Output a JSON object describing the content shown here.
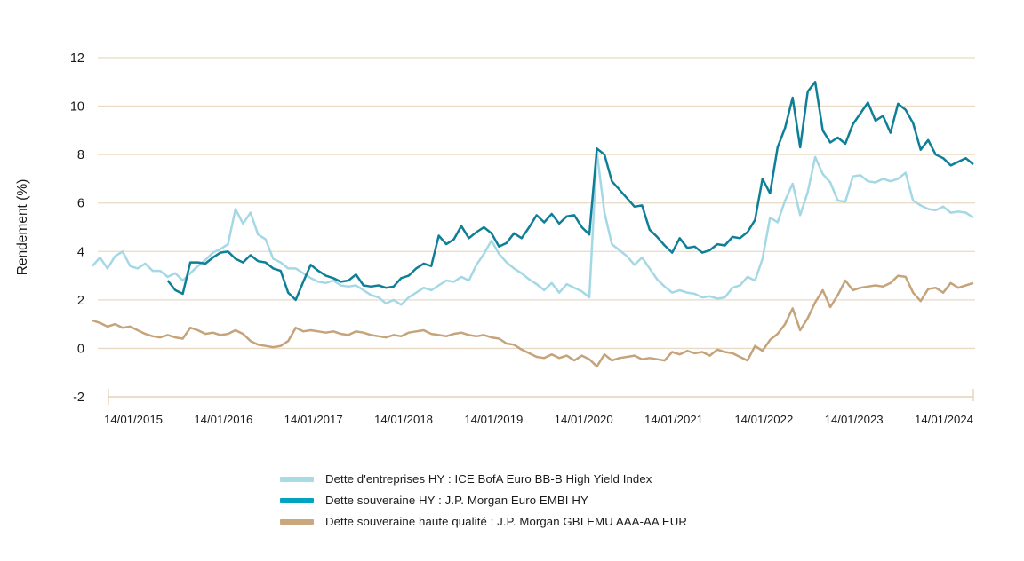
{
  "chart_data": {
    "type": "line",
    "title": "",
    "ylabel": "Rendement (%)",
    "y_ticks": [
      12,
      10,
      8,
      6,
      4,
      2,
      0,
      -2
    ],
    "ylim": [
      -2,
      12
    ],
    "grid": true,
    "legend_position": "bottom",
    "x_tick_labels": [
      "14/01/2015",
      "14/01/2016",
      "14/01/2017",
      "14/01/2018",
      "14/01/2019",
      "14/01/2020",
      "14/01/2021",
      "14/01/2022",
      "14/01/2023",
      "14/01/2024"
    ],
    "colors": {
      "gridline": "#EADAC4",
      "axis_line": "#E6D2B8",
      "text": "#1A1A1A"
    },
    "series": [
      {
        "name": "Dette d'entreprises HY : ICE BofA Euro BB-B High Yield Index",
        "color": "#A5D8E5",
        "legend_color": "#A9DAE6",
        "values": [
          3.4,
          3.75,
          3.3,
          3.8,
          4.0,
          3.4,
          3.3,
          3.5,
          3.2,
          3.2,
          2.95,
          3.1,
          2.8,
          3.1,
          3.4,
          3.65,
          3.95,
          4.1,
          4.3,
          5.75,
          5.15,
          5.6,
          4.7,
          4.5,
          3.7,
          3.55,
          3.3,
          3.3,
          3.1,
          2.9,
          2.75,
          2.7,
          2.8,
          2.6,
          2.55,
          2.6,
          2.4,
          2.2,
          2.1,
          1.85,
          2.0,
          1.8,
          2.1,
          2.3,
          2.5,
          2.4,
          2.6,
          2.8,
          2.75,
          2.95,
          2.8,
          3.45,
          3.9,
          4.45,
          3.9,
          3.55,
          3.3,
          3.1,
          2.85,
          2.65,
          2.4,
          2.7,
          2.3,
          2.65,
          2.5,
          2.35,
          2.1,
          8.1,
          5.6,
          4.3,
          4.05,
          3.8,
          3.45,
          3.75,
          3.3,
          2.85,
          2.55,
          2.3,
          2.4,
          2.3,
          2.25,
          2.1,
          2.15,
          2.05,
          2.1,
          2.5,
          2.6,
          2.95,
          2.8,
          3.7,
          5.4,
          5.2,
          6.1,
          6.8,
          5.5,
          6.45,
          7.9,
          7.2,
          6.85,
          6.1,
          6.05,
          7.1,
          7.15,
          6.9,
          6.85,
          7.0,
          6.9,
          7.0,
          7.25,
          6.1,
          5.9,
          5.75,
          5.7,
          5.85,
          5.6,
          5.65,
          5.6,
          5.4
        ]
      },
      {
        "name": "Dette souveraine HY : J.P. Morgan Euro EMBI HY",
        "color": "#0F7F97",
        "legend_color": "#00A4BF",
        "values": [
          null,
          null,
          null,
          null,
          null,
          null,
          null,
          null,
          null,
          null,
          2.8,
          2.4,
          2.25,
          3.55,
          3.55,
          3.5,
          3.75,
          3.95,
          4.0,
          3.7,
          3.55,
          3.85,
          3.6,
          3.55,
          3.3,
          3.2,
          2.3,
          2.0,
          2.75,
          3.45,
          3.2,
          3.0,
          2.9,
          2.75,
          2.8,
          3.05,
          2.6,
          2.55,
          2.6,
          2.5,
          2.55,
          2.9,
          3.0,
          3.3,
          3.5,
          3.4,
          4.65,
          4.3,
          4.5,
          5.05,
          4.55,
          4.8,
          5.0,
          4.75,
          4.2,
          4.35,
          4.75,
          4.55,
          5.0,
          5.5,
          5.2,
          5.55,
          5.15,
          5.45,
          5.5,
          5.0,
          4.7,
          8.25,
          8.0,
          6.9,
          6.55,
          6.2,
          5.85,
          5.9,
          4.9,
          4.6,
          4.25,
          3.95,
          4.55,
          4.15,
          4.2,
          3.95,
          4.05,
          4.3,
          4.25,
          4.6,
          4.55,
          4.8,
          5.3,
          7.0,
          6.4,
          8.3,
          9.1,
          10.35,
          8.3,
          10.6,
          11.0,
          9.0,
          8.5,
          8.7,
          8.45,
          9.25,
          9.7,
          10.15,
          9.4,
          9.6,
          8.9,
          10.1,
          9.85,
          9.3,
          8.2,
          8.6,
          8.0,
          7.85,
          7.55,
          7.7,
          7.85,
          7.6
        ]
      },
      {
        "name": "Dette souveraine haute qualité : J.P. Morgan GBI EMU AAA-AA EUR",
        "color": "#C5A37B",
        "legend_color": "#C9A87E",
        "values": [
          1.15,
          1.05,
          0.9,
          1.0,
          0.85,
          0.9,
          0.75,
          0.6,
          0.5,
          0.45,
          0.55,
          0.45,
          0.4,
          0.85,
          0.75,
          0.6,
          0.65,
          0.55,
          0.6,
          0.75,
          0.6,
          0.3,
          0.15,
          0.1,
          0.05,
          0.1,
          0.3,
          0.85,
          0.7,
          0.75,
          0.7,
          0.65,
          0.7,
          0.6,
          0.55,
          0.7,
          0.65,
          0.55,
          0.5,
          0.45,
          0.55,
          0.5,
          0.65,
          0.7,
          0.75,
          0.6,
          0.55,
          0.5,
          0.6,
          0.65,
          0.55,
          0.5,
          0.55,
          0.45,
          0.4,
          0.2,
          0.15,
          -0.05,
          -0.2,
          -0.35,
          -0.4,
          -0.25,
          -0.4,
          -0.3,
          -0.5,
          -0.3,
          -0.45,
          -0.75,
          -0.25,
          -0.5,
          -0.4,
          -0.35,
          -0.3,
          -0.45,
          -0.4,
          -0.45,
          -0.5,
          -0.15,
          -0.25,
          -0.1,
          -0.2,
          -0.15,
          -0.3,
          -0.05,
          -0.15,
          -0.2,
          -0.35,
          -0.5,
          0.1,
          -0.1,
          0.35,
          0.6,
          1.0,
          1.65,
          0.75,
          1.25,
          1.9,
          2.4,
          1.7,
          2.2,
          2.8,
          2.4,
          2.5,
          2.55,
          2.6,
          2.55,
          2.7,
          3.0,
          2.95,
          2.3,
          1.95,
          2.45,
          2.5,
          2.3,
          2.7,
          2.5,
          2.6,
          2.7
        ]
      }
    ]
  }
}
